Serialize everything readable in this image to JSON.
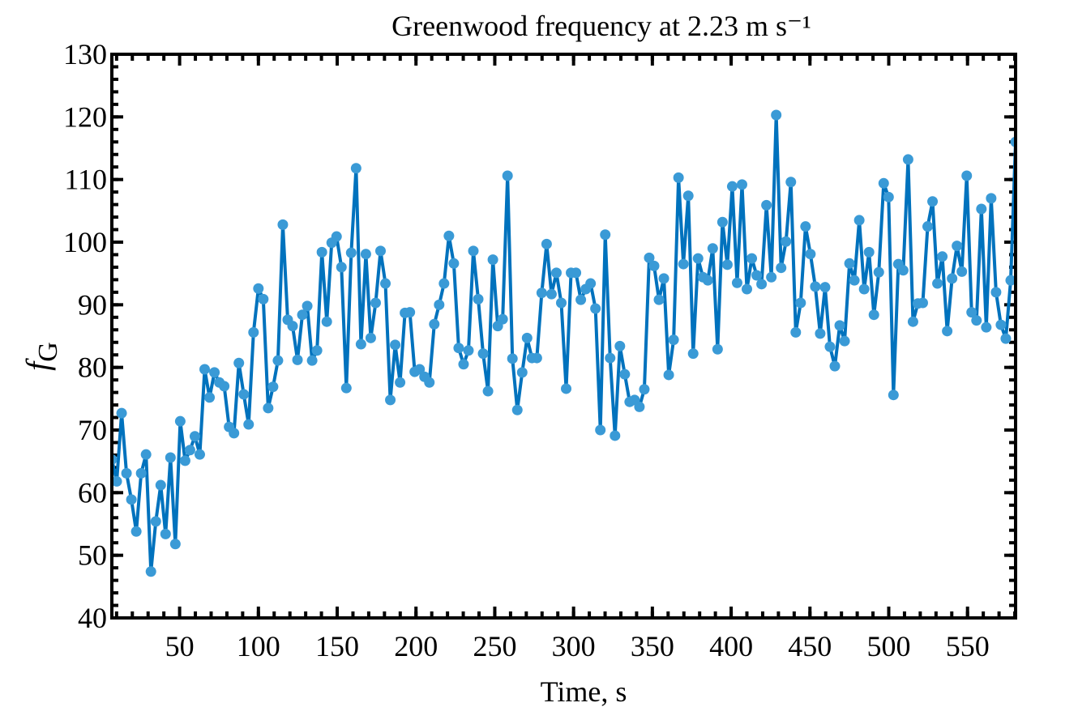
{
  "chart_data": {
    "type": "line",
    "title": "Greenwood frequency at 2.23 m s⁻¹",
    "xlabel": "Time, s",
    "ylabel": {
      "symbol": "f",
      "subscript": "G"
    },
    "xlim": [
      7,
      580.5
    ],
    "ylim": [
      40,
      130
    ],
    "xticks": [
      50,
      100,
      150,
      200,
      250,
      300,
      350,
      400,
      450,
      500,
      550
    ],
    "yticks": [
      40,
      50,
      60,
      70,
      80,
      90,
      100,
      110,
      120,
      130
    ],
    "x": [
      7,
      10.1,
      13.2,
      16.3,
      19.4,
      22.5,
      25.6,
      28.7,
      31.8,
      34.9,
      38,
      41.1,
      44.2,
      47.3,
      50.4,
      53.5,
      56.6,
      59.7,
      62.8,
      65.9,
      69,
      72.1,
      75.2,
      78.3,
      81.4,
      84.5,
      87.6,
      90.7,
      93.8,
      96.9,
      100,
      103.1,
      106.2,
      109.3,
      112.4,
      115.5,
      118.6,
      121.7,
      124.8,
      127.9,
      131,
      134.1,
      137.2,
      140.3,
      143.4,
      146.5,
      149.6,
      152.7,
      155.8,
      158.9,
      162,
      165.1,
      168.2,
      171.3,
      174.4,
      177.5,
      180.6,
      183.7,
      186.8,
      189.9,
      193,
      196.1,
      199.2,
      202.3,
      205.4,
      208.5,
      211.6,
      214.7,
      217.8,
      220.9,
      224,
      227.1,
      230.2,
      233.3,
      236.4,
      239.5,
      242.6,
      245.7,
      248.8,
      251.9,
      255,
      258.1,
      261.2,
      264.3,
      267.4,
      270.5,
      273.6,
      276.7,
      279.8,
      282.9,
      286,
      289.1,
      292.2,
      295.3,
      298.4,
      301.5,
      304.6,
      307.7,
      310.8,
      313.9,
      317,
      320.1,
      323.2,
      326.3,
      329.4,
      332.5,
      335.6,
      338.7,
      341.8,
      344.9,
      348,
      351.1,
      354.2,
      357.3,
      360.4,
      363.5,
      366.6,
      369.7,
      372.8,
      375.9,
      379,
      382.1,
      385.2,
      388.3,
      391.4,
      394.5,
      397.6,
      400.7,
      403.8,
      406.9,
      410,
      413.1,
      416.2,
      419.3,
      422.4,
      425.5,
      428.6,
      431.7,
      434.8,
      437.9,
      441,
      444.1,
      447.2,
      450.3,
      453.4,
      456.5,
      459.6,
      462.7,
      465.8,
      468.9,
      472,
      475.1,
      478.2,
      481.3,
      484.4,
      487.5,
      490.6,
      493.7,
      496.8,
      499.9,
      503,
      506.1,
      509.2,
      512.3,
      515.4,
      518.5,
      521.6,
      524.7,
      527.8,
      530.9,
      534,
      537.1,
      540.2,
      543.3,
      546.4,
      549.5,
      552.6,
      555.7,
      558.8,
      561.9,
      565,
      568.1,
      571.2,
      574.3,
      577.4,
      580.5
    ],
    "series": [
      {
        "color": "#0072bd",
        "marker_color": "#3a9ad6",
        "values": [
          65.3,
          61.8,
          72.7,
          63.1,
          58.9,
          53.8,
          63.1,
          66.1,
          47.4,
          55.4,
          61.2,
          53.4,
          65.6,
          51.8,
          71.4,
          65.1,
          66.8,
          69.0,
          66.1,
          79.7,
          75.2,
          79.2,
          77.6,
          77.0,
          70.5,
          69.5,
          80.7,
          75.7,
          70.9,
          85.6,
          92.6,
          90.9,
          73.5,
          76.9,
          81.1,
          102.8,
          87.6,
          86.6,
          81.2,
          88.4,
          89.8,
          81.1,
          82.7,
          98.4,
          87.3,
          99.9,
          100.9,
          96.0,
          76.7,
          98.3,
          111.8,
          83.7,
          98.1,
          84.7,
          90.3,
          98.6,
          93.4,
          74.8,
          83.6,
          77.6,
          88.7,
          88.8,
          79.3,
          79.7,
          78.5,
          77.6,
          86.9,
          90.0,
          93.4,
          101.0,
          96.6,
          83.1,
          80.5,
          82.7,
          98.6,
          90.9,
          82.2,
          76.2,
          97.2,
          86.6,
          87.7,
          110.6,
          81.4,
          73.2,
          79.2,
          84.7,
          81.5,
          81.5,
          91.9,
          99.7,
          91.7,
          95.1,
          90.3,
          76.6,
          95.1,
          95.1,
          90.8,
          92.5,
          93.4,
          89.4,
          70.0,
          101.2,
          81.5,
          69.1,
          83.4,
          78.9,
          74.5,
          74.8,
          73.7,
          76.5,
          97.5,
          96.2,
          90.8,
          94.2,
          78.8,
          84.4,
          110.3,
          96.5,
          107.4,
          82.2,
          97.4,
          94.4,
          93.9,
          99.0,
          82.9,
          103.2,
          96.4,
          108.9,
          93.5,
          109.2,
          92.5,
          97.4,
          94.7,
          93.3,
          105.9,
          94.4,
          120.3,
          95.9,
          100.1,
          109.6,
          85.6,
          90.3,
          102.5,
          98.1,
          92.9,
          85.4,
          92.8,
          83.3,
          80.2,
          86.7,
          84.2,
          96.6,
          93.9,
          103.5,
          92.5,
          98.4,
          88.4,
          95.2,
          109.4,
          107.2,
          75.6,
          96.5,
          95.5,
          113.2,
          87.3,
          90.2,
          90.3,
          102.5,
          106.5,
          93.4,
          97.7,
          85.8,
          94.2,
          99.4,
          95.3,
          110.6,
          88.8,
          87.5,
          105.3,
          86.4,
          107.0,
          92.0,
          86.8,
          84.6,
          93.9,
          116.0
        ]
      }
    ]
  }
}
